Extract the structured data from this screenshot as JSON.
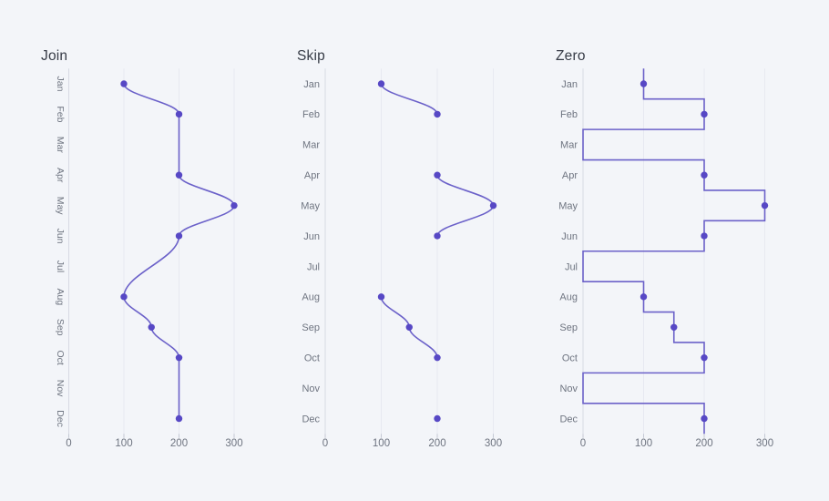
{
  "page": {
    "background": "#f3f5f9"
  },
  "colors": {
    "line": "#6b61c9",
    "point": "#5748c5",
    "grid": "#e7e9f1",
    "axis": "#d7dae3",
    "tick": "#c4c8d4",
    "title_text": "#363b46",
    "label_text": "#6e7480"
  },
  "chart_data": [
    {
      "type": "line",
      "title": "Join",
      "null_handling": "join",
      "smooth": true,
      "orientation": "horizontal-months",
      "category_labels_rotated": true,
      "categories": [
        "Jan",
        "Feb",
        "Mar",
        "Apr",
        "May",
        "Jun",
        "Jul",
        "Aug",
        "Sep",
        "Oct",
        "Nov",
        "Dec"
      ],
      "values": [
        100,
        200,
        null,
        200,
        300,
        200,
        null,
        100,
        150,
        200,
        null,
        200
      ],
      "x_ticks": [
        0,
        100,
        200,
        300
      ],
      "xlim": [
        0,
        350
      ],
      "grid": "vertical-gridlines",
      "legend": "none"
    },
    {
      "type": "line",
      "title": "Skip",
      "null_handling": "skip",
      "smooth": true,
      "orientation": "horizontal-months",
      "category_labels_rotated": false,
      "categories": [
        "Jan",
        "Feb",
        "Mar",
        "Apr",
        "May",
        "Jun",
        "Jul",
        "Aug",
        "Sep",
        "Oct",
        "Nov",
        "Dec"
      ],
      "values": [
        100,
        200,
        null,
        200,
        300,
        200,
        null,
        100,
        150,
        200,
        null,
        200
      ],
      "x_ticks": [
        0,
        100,
        200,
        300
      ],
      "xlim": [
        0,
        350
      ],
      "grid": "vertical-gridlines",
      "legend": "none"
    },
    {
      "type": "step",
      "title": "Zero",
      "null_handling": "zero",
      "step": "middle",
      "orientation": "horizontal-months",
      "category_labels_rotated": false,
      "categories": [
        "Jan",
        "Feb",
        "Mar",
        "Apr",
        "May",
        "Jun",
        "Jul",
        "Aug",
        "Sep",
        "Oct",
        "Nov",
        "Dec"
      ],
      "values": [
        100,
        200,
        null,
        200,
        300,
        200,
        null,
        100,
        150,
        200,
        null,
        200
      ],
      "x_ticks": [
        0,
        100,
        200,
        300
      ],
      "xlim": [
        0,
        350
      ],
      "grid": "vertical-gridlines",
      "legend": "none"
    }
  ]
}
